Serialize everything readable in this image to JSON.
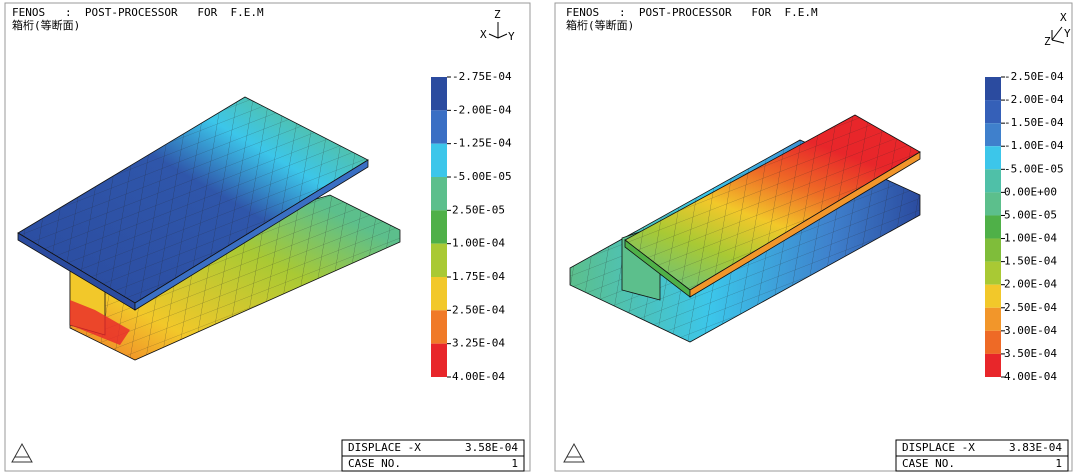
{
  "panels": [
    {
      "header": "FENOS   :  POST-PROCESSOR   FOR  F.E.M",
      "subtitle": "箱桁(等断面)",
      "axes": [
        "Z",
        "X",
        "Y"
      ],
      "legend": {
        "labels": [
          "-2.75E-04",
          "-2.00E-04",
          "-1.25E-04",
          "-5.00E-05",
          "2.50E-05",
          "1.00E-04",
          "1.75E-04",
          "2.50E-04",
          "3.25E-04",
          "4.00E-04"
        ],
        "colors": [
          "#2b4b9f",
          "#3a6fc4",
          "#3cc6ea",
          "#5cbf8c",
          "#4fb048",
          "#a9c934",
          "#f2c82a",
          "#f07a28",
          "#e8262a"
        ]
      },
      "footer": {
        "quantity": "DISPLACE -X",
        "max": "3.58E-04",
        "case_label": "CASE NO.",
        "case": "1"
      }
    },
    {
      "header": "FENOS   :  POST-PROCESSOR   FOR  F.E.M",
      "subtitle": "箱桁(等断面)",
      "axes": [
        "X",
        "Z",
        "Y"
      ],
      "legend": {
        "labels": [
          "-2.50E-04",
          "-2.00E-04",
          "-1.50E-04",
          "-1.00E-04",
          "-5.00E-05",
          "0.00E+00",
          "5.00E-05",
          "1.00E-04",
          "1.50E-04",
          "2.00E-04",
          "2.50E-04",
          "3.00E-04",
          "3.50E-04",
          "4.00E-04"
        ],
        "colors": [
          "#2b4b9f",
          "#3560b8",
          "#3f80cc",
          "#3cc6ea",
          "#4fc0a8",
          "#5cbf8c",
          "#4fb048",
          "#7fbd3a",
          "#a9c934",
          "#f2c82a",
          "#f2962a",
          "#ee6a26",
          "#e8262a"
        ]
      },
      "footer": {
        "quantity": "DISPLACE -X",
        "max": "3.83E-04",
        "case_label": "CASE NO.",
        "case": "1"
      }
    }
  ]
}
